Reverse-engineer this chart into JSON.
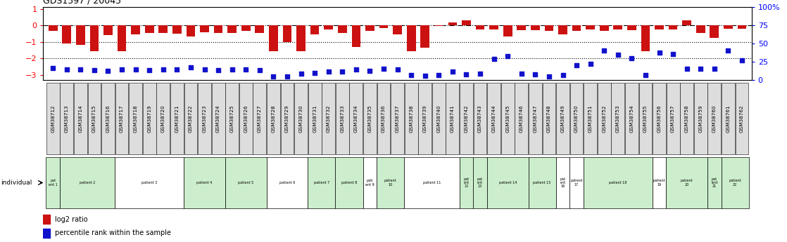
{
  "title": "GDS1597 / 20045",
  "samples": [
    "GSM38712",
    "GSM38713",
    "GSM38714",
    "GSM38715",
    "GSM38716",
    "GSM38717",
    "GSM38718",
    "GSM38719",
    "GSM38720",
    "GSM38721",
    "GSM38722",
    "GSM38723",
    "GSM38724",
    "GSM38725",
    "GSM38726",
    "GSM38727",
    "GSM38728",
    "GSM38729",
    "GSM38730",
    "GSM38731",
    "GSM38732",
    "GSM38733",
    "GSM38734",
    "GSM38735",
    "GSM38736",
    "GSM38737",
    "GSM38738",
    "GSM38739",
    "GSM38740",
    "GSM38741",
    "GSM38742",
    "GSM38743",
    "GSM38744",
    "GSM38745",
    "GSM38746",
    "GSM38747",
    "GSM38748",
    "GSM38749",
    "GSM38750",
    "GSM38751",
    "GSM38752",
    "GSM38753",
    "GSM38754",
    "GSM38755",
    "GSM38756",
    "GSM38757",
    "GSM38758",
    "GSM38759",
    "GSM38760",
    "GSM38761",
    "GSM38762"
  ],
  "log2_ratio": [
    -0.35,
    -1.1,
    -1.2,
    -1.55,
    -0.6,
    -1.55,
    -0.55,
    -0.45,
    -0.45,
    -0.5,
    -0.65,
    -0.4,
    -0.45,
    -0.45,
    -0.35,
    -0.45,
    -1.55,
    -1.0,
    -1.55,
    -0.55,
    -0.25,
    -0.45,
    -1.3,
    -0.35,
    -0.15,
    -0.55,
    -1.55,
    -1.35,
    -0.05,
    0.2,
    0.3,
    -0.25,
    -0.25,
    -0.65,
    -0.3,
    -0.3,
    -0.35,
    -0.55,
    -0.35,
    -0.25,
    -0.35,
    -0.25,
    -0.3,
    -1.55,
    -0.25,
    -0.25,
    0.3,
    -0.45,
    -0.75,
    -0.2,
    -0.2
  ],
  "percentile": [
    16,
    14,
    14,
    13,
    12,
    14,
    14,
    13,
    14,
    14,
    17,
    14,
    13,
    14,
    14,
    13,
    5,
    5,
    9,
    10,
    11,
    11,
    14,
    12,
    15,
    14,
    7,
    6,
    7,
    11,
    8,
    9,
    29,
    33,
    9,
    8,
    5,
    7,
    20,
    22,
    40,
    35,
    30,
    7,
    38,
    36,
    15,
    15,
    15,
    40,
    27
  ],
  "patient_groups": [
    {
      "label": "pat\nent 1",
      "start": 0,
      "end": 0,
      "color": "#cceecc"
    },
    {
      "label": "patient 2",
      "start": 1,
      "end": 4,
      "color": "#cceecc"
    },
    {
      "label": "patient 3",
      "start": 5,
      "end": 9,
      "color": "#ffffff"
    },
    {
      "label": "patient 4",
      "start": 10,
      "end": 12,
      "color": "#cceecc"
    },
    {
      "label": "patient 5",
      "start": 13,
      "end": 15,
      "color": "#cceecc"
    },
    {
      "label": "patient 6",
      "start": 16,
      "end": 18,
      "color": "#ffffff"
    },
    {
      "label": "patient 7",
      "start": 19,
      "end": 20,
      "color": "#cceecc"
    },
    {
      "label": "patient 8",
      "start": 21,
      "end": 22,
      "color": "#cceecc"
    },
    {
      "label": "pati\nent 9",
      "start": 23,
      "end": 23,
      "color": "#ffffff"
    },
    {
      "label": "patient\n10",
      "start": 24,
      "end": 25,
      "color": "#cceecc"
    },
    {
      "label": "patient 11",
      "start": 26,
      "end": 29,
      "color": "#ffffff"
    },
    {
      "label": "pat\nent\n12",
      "start": 30,
      "end": 30,
      "color": "#cceecc"
    },
    {
      "label": "pat\nent\n13",
      "start": 31,
      "end": 31,
      "color": "#cceecc"
    },
    {
      "label": "patient 14",
      "start": 32,
      "end": 34,
      "color": "#cceecc"
    },
    {
      "label": "patient 15",
      "start": 35,
      "end": 36,
      "color": "#cceecc"
    },
    {
      "label": "pat\nent\n16",
      "start": 37,
      "end": 37,
      "color": "#ffffff"
    },
    {
      "label": "patient\n17",
      "start": 38,
      "end": 38,
      "color": "#ffffff"
    },
    {
      "label": "patient 18",
      "start": 39,
      "end": 43,
      "color": "#cceecc"
    },
    {
      "label": "patient\n19",
      "start": 44,
      "end": 44,
      "color": "#ffffff"
    },
    {
      "label": "patient\n20",
      "start": 45,
      "end": 47,
      "color": "#cceecc"
    },
    {
      "label": "pat\nient\n21",
      "start": 48,
      "end": 48,
      "color": "#cceecc"
    },
    {
      "label": "patient\n22",
      "start": 49,
      "end": 50,
      "color": "#cceecc"
    }
  ],
  "bar_color": "#cc1111",
  "dot_color": "#1111cc",
  "ylim_left": [
    -3.3,
    1.1
  ],
  "ylim_right": [
    0,
    100
  ],
  "yticks_left": [
    1,
    0,
    -1,
    -2,
    -3
  ],
  "yticks_right": [
    0,
    25,
    50,
    75,
    100
  ],
  "dotted_lines": [
    -1,
    -2
  ],
  "dashed_line": 0,
  "legend_red": "log2 ratio",
  "legend_blue": "percentile rank within the sample",
  "sample_box_color": "#dddddd"
}
